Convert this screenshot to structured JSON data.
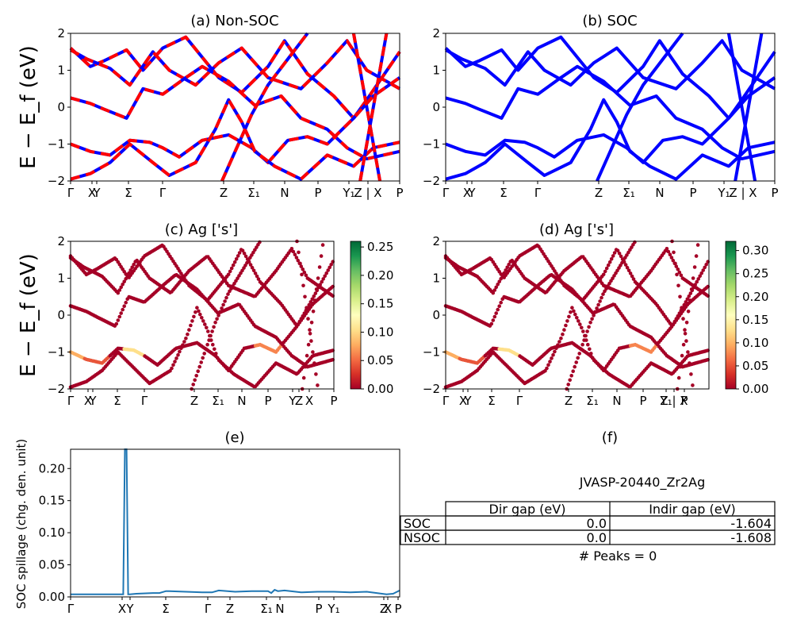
{
  "chart_data": [
    {
      "id": "a",
      "type": "line",
      "title": "(a) Non-SOC",
      "ylabel": "E − E_f (eV)",
      "ylim": [
        -2,
        2
      ],
      "yticks": [
        "2",
        "1",
        "0",
        "−1",
        "−2"
      ],
      "xticks": [
        "Γ",
        "X",
        "Y",
        "Σ",
        "Γ",
        "Z",
        "Σ₁",
        "N",
        "P",
        "Y₁",
        "Z | X",
        "P"
      ],
      "series": [
        {
          "color": "#0000ff",
          "style": "solid"
        },
        {
          "color": "#ff0000",
          "style": "dashed"
        }
      ]
    },
    {
      "id": "b",
      "type": "line",
      "title": "(b) SOC",
      "ylim": [
        -2,
        2
      ],
      "yticks": [
        "2",
        "1",
        "0",
        "−1",
        "−2"
      ],
      "xticks": [
        "Γ",
        "X",
        "Y",
        "Σ",
        "Γ",
        "Z",
        "Σ₁",
        "N",
        "P",
        "Y₁",
        "Z | X",
        "P"
      ],
      "series": [
        {
          "color": "#0000ff",
          "style": "solid"
        }
      ]
    },
    {
      "id": "c",
      "type": "scatter",
      "title": "(c)  Ag ['s']",
      "ylabel": "E − E_f (eV)",
      "ylim": [
        -2,
        2
      ],
      "yticks": [
        "2",
        "1",
        "0",
        "−1",
        "−2"
      ],
      "xticks": [
        "Γ",
        "X",
        "Y",
        "Σ",
        "Γ",
        "Z",
        "Σ₁",
        "N",
        "P",
        "Y",
        "Z",
        "X",
        "P"
      ],
      "colorbar": {
        "min": 0.0,
        "max": 0.26,
        "ticks": [
          "0.25",
          "0.20",
          "0.15",
          "0.10",
          "0.05",
          "0.00"
        ],
        "colormap": "RdYlGn"
      }
    },
    {
      "id": "d",
      "type": "scatter",
      "title": "(d) Ag ['s']",
      "ylim": [
        -2,
        2
      ],
      "yticks": [
        "2",
        "1",
        "0",
        "−1",
        "−2"
      ],
      "xticks": [
        "Γ",
        "X",
        "Y",
        "Σ",
        "Γ",
        "Z",
        "Σ₁",
        "N",
        "P",
        "Y₁",
        "Z | X",
        "P"
      ],
      "colorbar": {
        "min": 0.0,
        "max": 0.32,
        "ticks": [
          "0.30",
          "0.25",
          "0.20",
          "0.15",
          "0.10",
          "0.05",
          "0.00"
        ],
        "colormap": "RdYlGn"
      }
    },
    {
      "id": "e",
      "type": "line",
      "title": "(e)",
      "ylabel": "SOC spillage (chg. den. unit)",
      "ylim": [
        0,
        0.23
      ],
      "yticks": [
        "0.20",
        "0.15",
        "0.10",
        "0.05",
        "0.00"
      ],
      "xticks": [
        "Γ",
        "X",
        "Y",
        "Σ",
        "Γ",
        "Z",
        "Σ₁",
        "N",
        "P",
        "Y₁",
        "Z",
        "X",
        "P"
      ],
      "series": [
        {
          "color": "#1f77b4"
        }
      ],
      "x": [
        0,
        0.16,
        0.165,
        0.17,
        0.175,
        0.18,
        0.2,
        0.25,
        0.27,
        0.29,
        0.3,
        0.35,
        0.4,
        0.43,
        0.45,
        0.5,
        0.55,
        0.6,
        0.61,
        0.62,
        0.63,
        0.65,
        0.7,
        0.75,
        0.8,
        0.85,
        0.9,
        0.93,
        0.96,
        0.98,
        1.0
      ],
      "y": [
        0.004,
        0.004,
        0.23,
        0.23,
        0.004,
        0.004,
        0.005,
        0.006,
        0.006,
        0.009,
        0.009,
        0.008,
        0.007,
        0.007,
        0.01,
        0.008,
        0.009,
        0.009,
        0.006,
        0.011,
        0.009,
        0.01,
        0.007,
        0.008,
        0.008,
        0.007,
        0.008,
        0.006,
        0.004,
        0.005,
        0.01
      ]
    },
    {
      "id": "f",
      "type": "table",
      "title": "(f)",
      "subtitle": "JVASP-20440_Zr2Ag",
      "columns": [
        "Dir gap (eV)",
        "Indir gap (eV)"
      ],
      "rows": [
        {
          "label": "SOC",
          "values": [
            "0.0",
            "-1.604"
          ]
        },
        {
          "label": "NSOC",
          "values": [
            "0.0",
            "-1.608"
          ]
        }
      ],
      "footer": "# Peaks = 0"
    }
  ]
}
